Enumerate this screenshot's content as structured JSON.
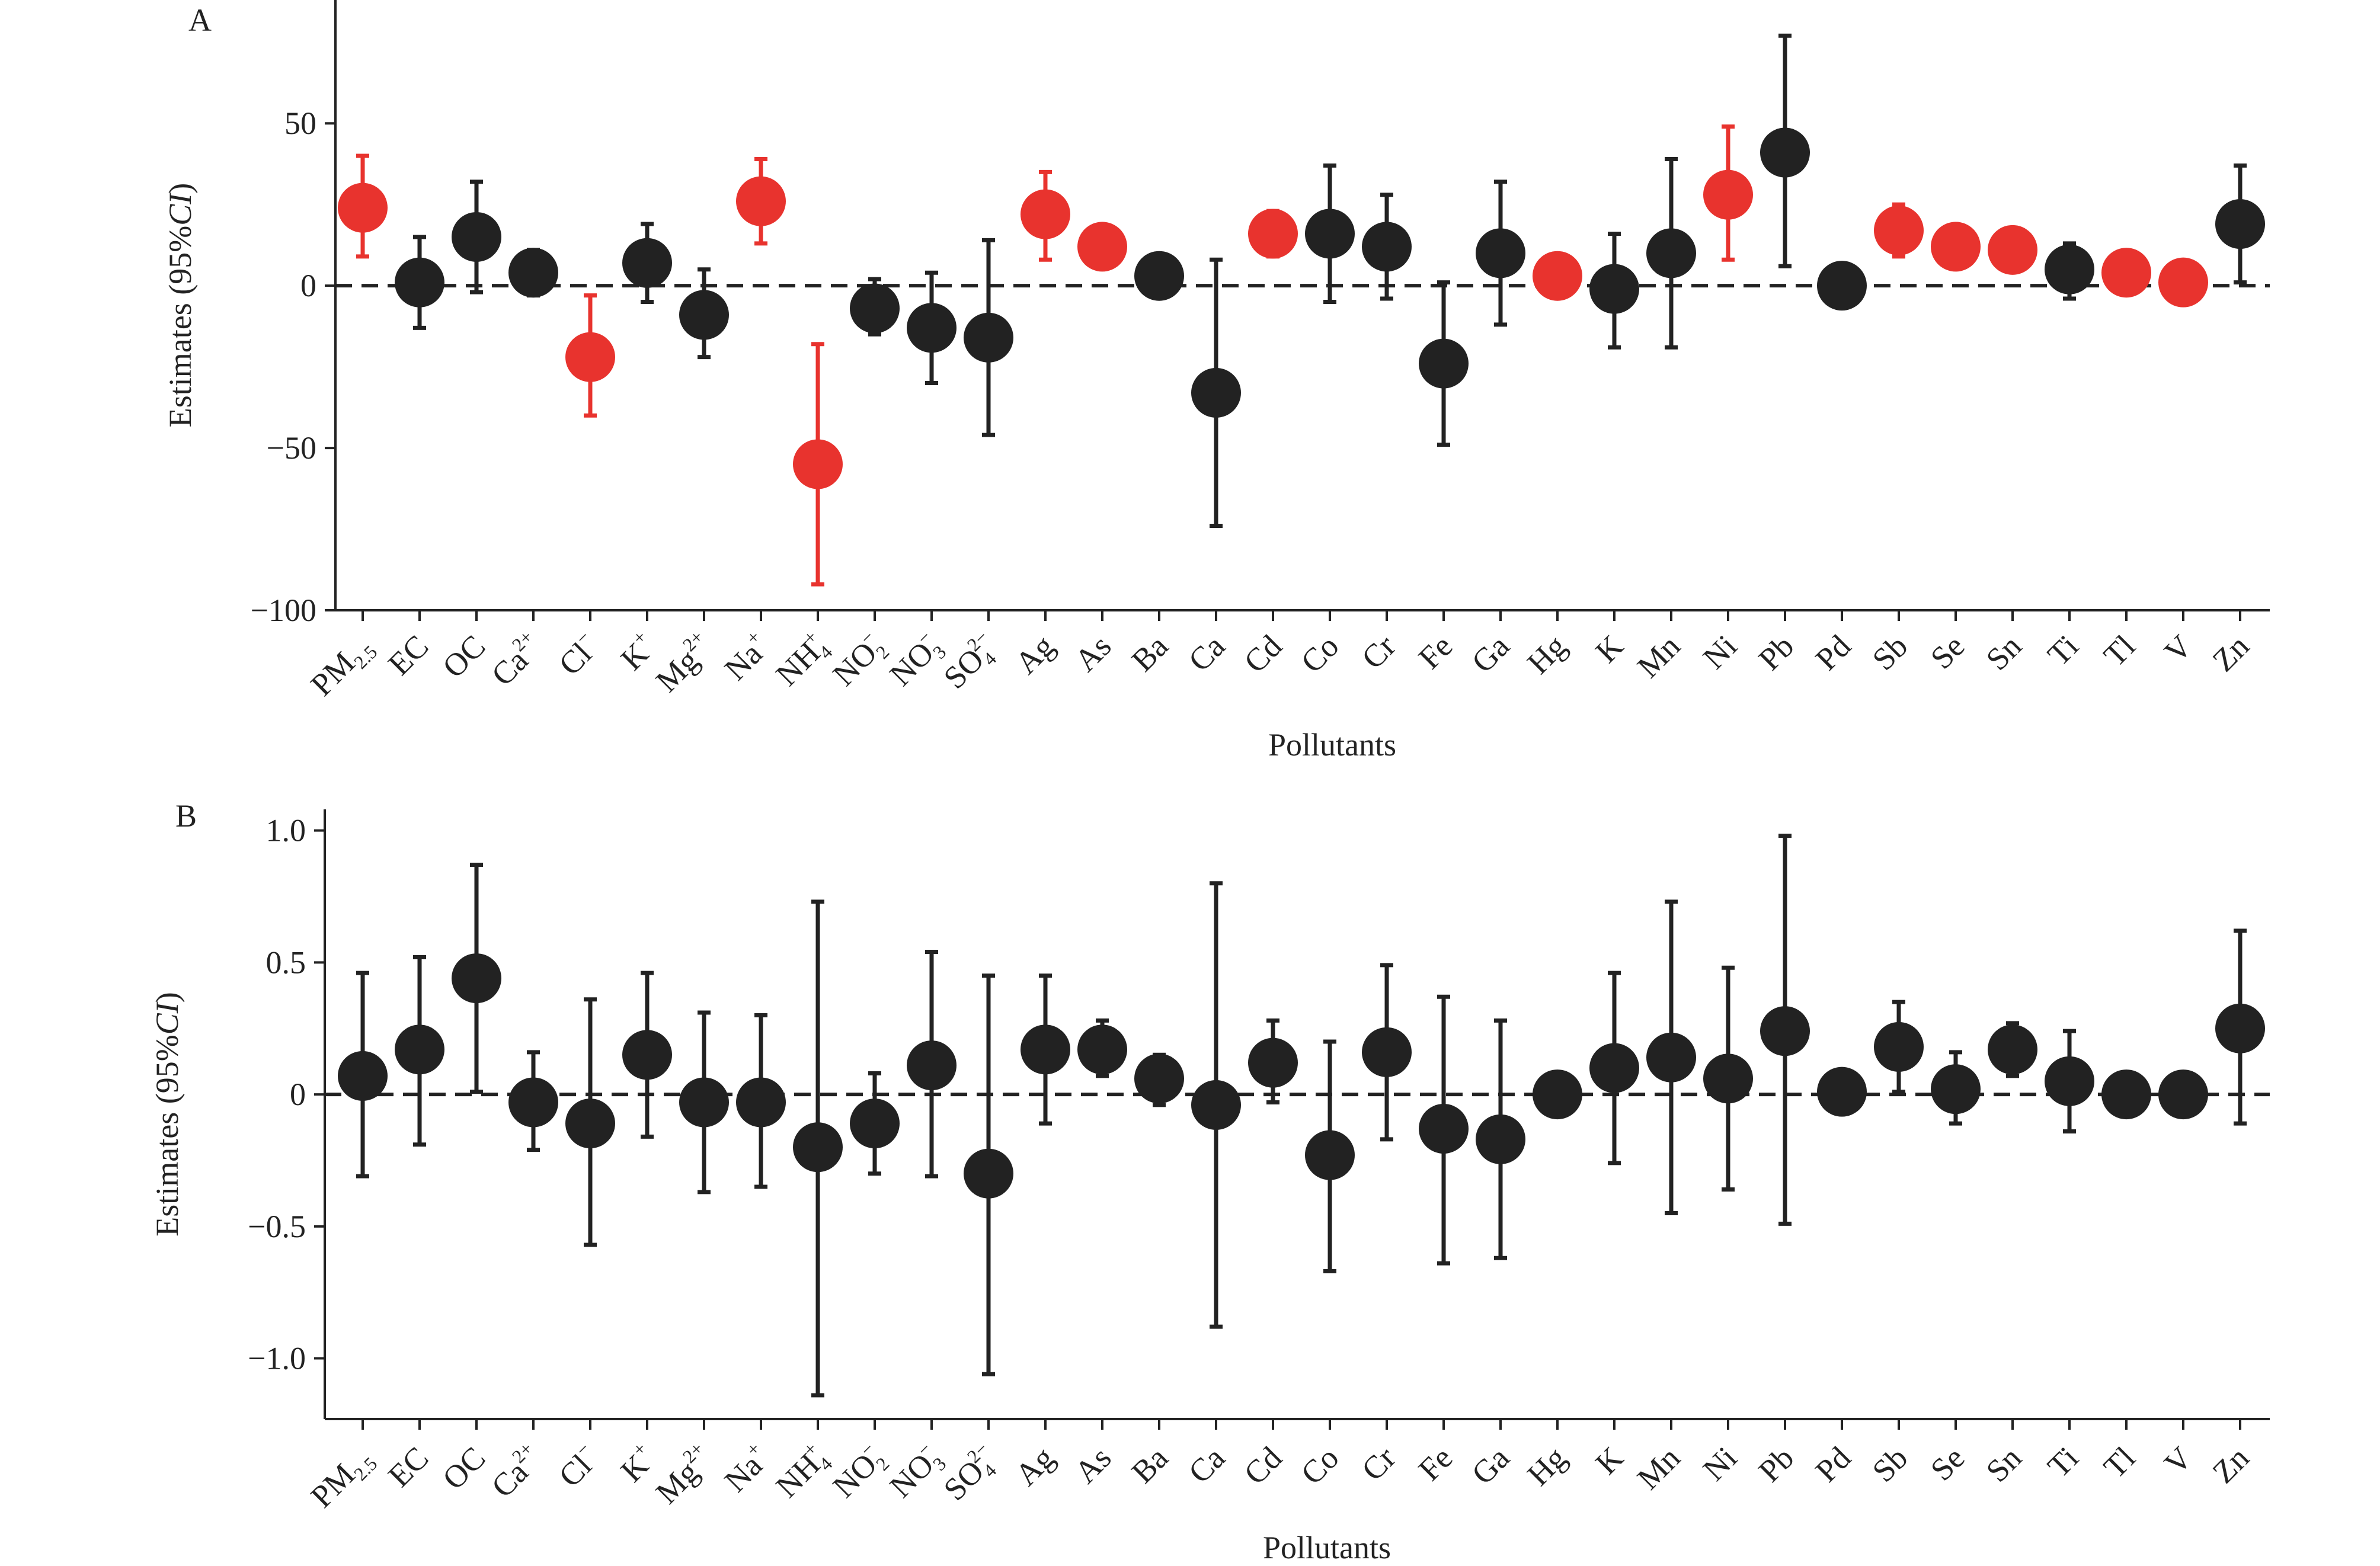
{
  "chart_data": [
    {
      "type": "scatter",
      "panel_label": "A",
      "title": "",
      "xlabel": "Pollutants",
      "ylabel": "Estimates (95% CI)",
      "ylim": [
        -100,
        88
      ],
      "yticks": [
        50,
        0,
        -50,
        -100
      ],
      "ytick_labels": [
        "50",
        "0",
        "−50",
        "−100"
      ],
      "reference_line": 0,
      "grid": false,
      "legend": "none",
      "colors": {
        "significant": "#e8332e",
        "not_significant": "#222222"
      },
      "categories": [
        {
          "label": "PM",
          "sub": "2.5",
          "sup": ""
        },
        {
          "label": "EC",
          "sub": "",
          "sup": ""
        },
        {
          "label": "OC",
          "sub": "",
          "sup": ""
        },
        {
          "label": "Ca",
          "sub": "",
          "sup": "2+"
        },
        {
          "label": "Cl",
          "sub": "",
          "sup": "−"
        },
        {
          "label": "K",
          "sub": "",
          "sup": "+"
        },
        {
          "label": "Mg",
          "sub": "",
          "sup": "2+"
        },
        {
          "label": "Na",
          "sub": "",
          "sup": "+"
        },
        {
          "label": "NH",
          "sub": "4",
          "sup": "+"
        },
        {
          "label": "NO",
          "sub": "2",
          "sup": "−"
        },
        {
          "label": "NO",
          "sub": "3",
          "sup": "−"
        },
        {
          "label": "SO",
          "sub": "4",
          "sup": "2−"
        },
        {
          "label": "Ag",
          "sub": "",
          "sup": ""
        },
        {
          "label": "As",
          "sub": "",
          "sup": ""
        },
        {
          "label": "Ba",
          "sub": "",
          "sup": ""
        },
        {
          "label": "Ca",
          "sub": "",
          "sup": ""
        },
        {
          "label": "Cd",
          "sub": "",
          "sup": ""
        },
        {
          "label": "Co",
          "sub": "",
          "sup": ""
        },
        {
          "label": "Cr",
          "sub": "",
          "sup": ""
        },
        {
          "label": "Fe",
          "sub": "",
          "sup": ""
        },
        {
          "label": "Ga",
          "sub": "",
          "sup": ""
        },
        {
          "label": "Hg",
          "sub": "",
          "sup": ""
        },
        {
          "label": "K",
          "sub": "",
          "sup": ""
        },
        {
          "label": "Mn",
          "sub": "",
          "sup": ""
        },
        {
          "label": "Ni",
          "sub": "",
          "sup": ""
        },
        {
          "label": "Pb",
          "sub": "",
          "sup": ""
        },
        {
          "label": "Pd",
          "sub": "",
          "sup": ""
        },
        {
          "label": "Sb",
          "sub": "",
          "sup": ""
        },
        {
          "label": "Se",
          "sub": "",
          "sup": ""
        },
        {
          "label": "Sn",
          "sub": "",
          "sup": ""
        },
        {
          "label": "Ti",
          "sub": "",
          "sup": ""
        },
        {
          "label": "Tl",
          "sub": "",
          "sup": ""
        },
        {
          "label": "V",
          "sub": "",
          "sup": ""
        },
        {
          "label": "Zn",
          "sub": "",
          "sup": ""
        }
      ],
      "estimates": [
        24,
        1,
        15,
        4,
        -22,
        7,
        -9,
        26,
        -55,
        -7,
        -13,
        -16,
        22,
        12,
        3,
        -33,
        16,
        16,
        12,
        -24,
        10,
        3,
        -1,
        10,
        28,
        41,
        0,
        17,
        12,
        11,
        5,
        4,
        1,
        19
      ],
      "ci_lower": [
        9,
        -13,
        -2,
        -3,
        -40,
        -5,
        -22,
        13,
        -92,
        -15,
        -30,
        -46,
        8,
        12,
        3,
        -74,
        9,
        -5,
        -4,
        -49,
        -12,
        3,
        -19,
        -19,
        8,
        6,
        0,
        9,
        12,
        11,
        -4,
        4,
        1,
        1
      ],
      "ci_upper": [
        40,
        15,
        32,
        11,
        -3,
        19,
        5,
        39,
        -18,
        2,
        4,
        14,
        35,
        12,
        3,
        8,
        23,
        37,
        28,
        1,
        32,
        3,
        16,
        39,
        49,
        77,
        0,
        25,
        12,
        11,
        13,
        4,
        1,
        37
      ],
      "significant": [
        true,
        false,
        false,
        false,
        true,
        false,
        false,
        true,
        true,
        false,
        false,
        false,
        true,
        true,
        false,
        false,
        true,
        false,
        false,
        false,
        false,
        true,
        false,
        false,
        true,
        false,
        false,
        true,
        true,
        true,
        false,
        true,
        true,
        false
      ]
    },
    {
      "type": "scatter",
      "panel_label": "B",
      "title": "",
      "xlabel": "Pollutants",
      "ylabel": "Estimates (95% CI)",
      "ylim": [
        -1.23,
        1.08
      ],
      "yticks": [
        1.0,
        0.5,
        0,
        -0.5,
        -1.0
      ],
      "ytick_labels": [
        "1.0",
        "0.5",
        "0",
        "−0.5",
        "−1.0"
      ],
      "reference_line": 0,
      "grid": false,
      "legend": "none",
      "colors": {
        "significant": "#e8332e",
        "not_significant": "#222222"
      },
      "categories": [
        {
          "label": "PM",
          "sub": "2.5",
          "sup": ""
        },
        {
          "label": "EC",
          "sub": "",
          "sup": ""
        },
        {
          "label": "OC",
          "sub": "",
          "sup": ""
        },
        {
          "label": "Ca",
          "sub": "",
          "sup": "2+"
        },
        {
          "label": "Cl",
          "sub": "",
          "sup": "−"
        },
        {
          "label": "K",
          "sub": "",
          "sup": "+"
        },
        {
          "label": "Mg",
          "sub": "",
          "sup": "2+"
        },
        {
          "label": "Na",
          "sub": "",
          "sup": "+"
        },
        {
          "label": "NH",
          "sub": "4",
          "sup": "+"
        },
        {
          "label": "NO",
          "sub": "2",
          "sup": "−"
        },
        {
          "label": "NO",
          "sub": "3",
          "sup": "−"
        },
        {
          "label": "SO",
          "sub": "4",
          "sup": "2−"
        },
        {
          "label": "Ag",
          "sub": "",
          "sup": ""
        },
        {
          "label": "As",
          "sub": "",
          "sup": ""
        },
        {
          "label": "Ba",
          "sub": "",
          "sup": ""
        },
        {
          "label": "Ca",
          "sub": "",
          "sup": ""
        },
        {
          "label": "Cd",
          "sub": "",
          "sup": ""
        },
        {
          "label": "Co",
          "sub": "",
          "sup": ""
        },
        {
          "label": "Cr",
          "sub": "",
          "sup": ""
        },
        {
          "label": "Fe",
          "sub": "",
          "sup": ""
        },
        {
          "label": "Ga",
          "sub": "",
          "sup": ""
        },
        {
          "label": "Hg",
          "sub": "",
          "sup": ""
        },
        {
          "label": "K",
          "sub": "",
          "sup": ""
        },
        {
          "label": "Mn",
          "sub": "",
          "sup": ""
        },
        {
          "label": "Ni",
          "sub": "",
          "sup": ""
        },
        {
          "label": "Pb",
          "sub": "",
          "sup": ""
        },
        {
          "label": "Pd",
          "sub": "",
          "sup": ""
        },
        {
          "label": "Sb",
          "sub": "",
          "sup": ""
        },
        {
          "label": "Se",
          "sub": "",
          "sup": ""
        },
        {
          "label": "Sn",
          "sub": "",
          "sup": ""
        },
        {
          "label": "Ti",
          "sub": "",
          "sup": ""
        },
        {
          "label": "Tl",
          "sub": "",
          "sup": ""
        },
        {
          "label": "V",
          "sub": "",
          "sup": ""
        },
        {
          "label": "Zn",
          "sub": "",
          "sup": ""
        }
      ],
      "estimates": [
        0.07,
        0.17,
        0.44,
        -0.03,
        -0.11,
        0.15,
        -0.03,
        -0.03,
        -0.2,
        -0.11,
        0.11,
        -0.3,
        0.17,
        0.17,
        0.06,
        -0.04,
        0.12,
        -0.23,
        0.16,
        -0.13,
        -0.17,
        0.0,
        0.1,
        0.14,
        0.06,
        0.24,
        0.01,
        0.18,
        0.02,
        0.17,
        0.05,
        0.0,
        0.0,
        0.25
      ],
      "ci_lower": [
        -0.31,
        -0.19,
        0.01,
        -0.21,
        -0.57,
        -0.16,
        -0.37,
        -0.35,
        -1.14,
        -0.3,
        -0.31,
        -1.06,
        -0.11,
        0.07,
        -0.04,
        -0.88,
        -0.03,
        -0.67,
        -0.17,
        -0.64,
        -0.62,
        0.0,
        -0.26,
        -0.45,
        -0.36,
        -0.49,
        0.01,
        0.01,
        -0.11,
        0.07,
        -0.14,
        0.0,
        0.0,
        -0.11
      ],
      "ci_upper": [
        0.46,
        0.52,
        0.87,
        0.16,
        0.36,
        0.46,
        0.31,
        0.3,
        0.73,
        0.08,
        0.54,
        0.45,
        0.45,
        0.28,
        0.15,
        0.8,
        0.28,
        0.2,
        0.49,
        0.37,
        0.28,
        0.0,
        0.46,
        0.73,
        0.48,
        0.98,
        0.01,
        0.35,
        0.16,
        0.27,
        0.24,
        0.0,
        0.0,
        0.62
      ],
      "significant": [
        false,
        false,
        false,
        false,
        false,
        false,
        false,
        false,
        false,
        false,
        false,
        false,
        false,
        false,
        false,
        false,
        false,
        false,
        false,
        false,
        false,
        false,
        false,
        false,
        false,
        false,
        false,
        false,
        false,
        false,
        false,
        false,
        false,
        false
      ]
    }
  ]
}
